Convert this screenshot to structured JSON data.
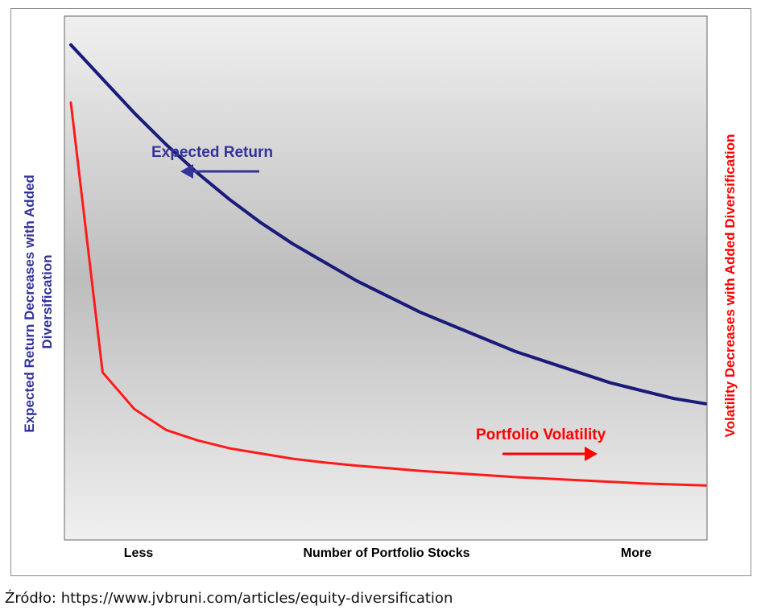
{
  "chart_data": {
    "type": "line",
    "xlabel": "Number of Portfolio Stocks",
    "x_ticks": [
      "Less",
      "More"
    ],
    "ylabel_left": "Expected Return Decreases with Added Diversification",
    "ylabel_right": "Volatility Decreases with Added Diversification",
    "x": [
      0,
      0.05,
      0.1,
      0.15,
      0.2,
      0.25,
      0.3,
      0.35,
      0.4,
      0.45,
      0.5,
      0.55,
      0.6,
      0.65,
      0.7,
      0.75,
      0.8,
      0.85,
      0.9,
      0.95,
      1.0
    ],
    "series": [
      {
        "name": "Expected Return",
        "color": "#1a1a7a",
        "arrow_direction": "left",
        "values": [
          0.945,
          0.88,
          0.815,
          0.755,
          0.7,
          0.65,
          0.605,
          0.565,
          0.53,
          0.495,
          0.465,
          0.435,
          0.41,
          0.385,
          0.36,
          0.34,
          0.32,
          0.3,
          0.285,
          0.27,
          0.26
        ]
      },
      {
        "name": "Portfolio Volatility",
        "color": "#ff1a1a",
        "arrow_direction": "right",
        "values": [
          0.835,
          0.32,
          0.25,
          0.21,
          0.19,
          0.175,
          0.165,
          0.155,
          0.148,
          0.142,
          0.137,
          0.132,
          0.128,
          0.124,
          0.12,
          0.117,
          0.114,
          0.111,
          0.108,
          0.106,
          0.104
        ]
      }
    ],
    "annotations": [
      {
        "text": "Expected Return",
        "color": "#333399"
      },
      {
        "text": "Portfolio Volatility",
        "color": "#ff0000"
      }
    ],
    "background": "vertical gray gradient",
    "grid": false,
    "legend": "none"
  },
  "caption": "Źródło: https://www.jvbruni.com/articles/equity-diversification"
}
